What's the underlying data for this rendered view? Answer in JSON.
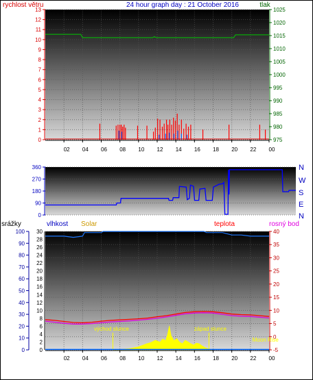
{
  "colors": {
    "wind": "#d80000",
    "gust": "#ff0000",
    "pressure": "#00c800",
    "direction": "#0000ff",
    "humidity": "#1e78ff",
    "temperature": "#ff0000",
    "dewpoint": "#e000e0",
    "solar": "#ffff00",
    "rain": "#0066ff",
    "title": "#0000c0",
    "axis_left_top": "#d80000",
    "axis_right_top": "#006400",
    "axis_right_bottom": "#c00000",
    "axis_left_bottom": "#0000a0"
  },
  "chart_data": [
    {
      "type": "line",
      "panel": "wind-pressure",
      "title": "24 hour graph day : 21 October 2016",
      "left_label": "rychlost větru",
      "right_label": "tlak",
      "x_ticks": [
        "02",
        "04",
        "06",
        "08",
        "10",
        "12",
        "14",
        "16",
        "18",
        "20",
        "22",
        "00"
      ],
      "x_range_hours": [
        0,
        24
      ],
      "left_ylim": [
        0,
        13
      ],
      "left_ticks": [
        0,
        1,
        2,
        3,
        4,
        5,
        6,
        7,
        8,
        9,
        10,
        11,
        12,
        13
      ],
      "right_ylim": [
        975,
        1025
      ],
      "right_ticks": [
        975,
        980,
        985,
        990,
        995,
        1000,
        1005,
        1010,
        1015,
        1020,
        1025
      ],
      "series": [
        {
          "axis": "right",
          "points": [
            [
              0,
              1015.5
            ],
            [
              3.8,
              1015.5
            ],
            [
              4.0,
              1014.2
            ],
            [
              11.5,
              1014.2
            ],
            [
              11.7,
              1014.6
            ],
            [
              11.9,
              1014.2
            ],
            [
              20.2,
              1014.2
            ],
            [
              20.4,
              1015.3
            ],
            [
              24,
              1015.3
            ]
          ]
        },
        {
          "axis": "left",
          "style": "spikes",
          "points": [
            [
              5.85,
              1.6
            ],
            [
              7.6,
              1.4
            ],
            [
              7.8,
              1.5
            ],
            [
              8.0,
              1.5
            ],
            [
              8.15,
              1.5
            ],
            [
              8.3,
              1.3
            ],
            [
              8.45,
              1.5
            ],
            [
              8.6,
              1.2
            ],
            [
              9.9,
              1.4
            ],
            [
              10.9,
              1.4
            ],
            [
              11.6,
              0.8
            ],
            [
              11.8,
              1.2
            ],
            [
              12.05,
              2.1
            ],
            [
              12.3,
              2.0
            ],
            [
              12.55,
              1.3
            ],
            [
              12.75,
              1.6
            ],
            [
              13.0,
              2.0
            ],
            [
              13.15,
              1.5
            ],
            [
              13.35,
              2.0
            ],
            [
              13.55,
              1.5
            ],
            [
              13.75,
              2.2
            ],
            [
              13.95,
              1.9
            ],
            [
              14.15,
              2.6
            ],
            [
              14.35,
              1.5
            ],
            [
              14.6,
              2.0
            ],
            [
              14.85,
              1.1
            ],
            [
              15.1,
              1.6
            ],
            [
              15.35,
              1.3
            ],
            [
              15.6,
              1.5
            ],
            [
              16.9,
              1.0
            ],
            [
              19.7,
              1.5
            ],
            [
              23.0,
              1.5
            ],
            [
              23.6,
              1.0
            ]
          ]
        },
        {
          "axis": "left",
          "style": "spikes",
          "points": [
            [
              7.9,
              0.9
            ],
            [
              8.2,
              0.8
            ],
            [
              12.2,
              0.5
            ],
            [
              12.9,
              0.6
            ],
            [
              13.3,
              0.7
            ],
            [
              13.8,
              0.6
            ],
            [
              14.2,
              0.9
            ],
            [
              14.6,
              0.6
            ],
            [
              15.2,
              0.5
            ]
          ]
        }
      ]
    },
    {
      "type": "line",
      "panel": "wind-direction",
      "y_ticks": [
        0,
        90,
        180,
        270,
        360
      ],
      "ylim": [
        0,
        360
      ],
      "right_labels": [
        "N",
        "W",
        "S",
        "E",
        "N"
      ],
      "series": [
        {
          "points": [
            [
              0,
              75
            ],
            [
              6.8,
              75
            ],
            [
              6.85,
              90
            ],
            [
              7.2,
              90
            ],
            [
              7.25,
              125
            ],
            [
              11.8,
              125
            ],
            [
              11.85,
              110
            ],
            [
              12.2,
              110
            ],
            [
              12.25,
              130
            ],
            [
              12.8,
              130
            ],
            [
              12.85,
              215
            ],
            [
              13.5,
              210
            ],
            [
              13.6,
              115
            ],
            [
              13.8,
              125
            ],
            [
              13.9,
              225
            ],
            [
              14.2,
              215
            ],
            [
              14.3,
              110
            ],
            [
              14.7,
              110
            ],
            [
              14.8,
              195
            ],
            [
              15.3,
              200
            ],
            [
              15.4,
              110
            ],
            [
              16.0,
              110
            ],
            [
              16.1,
              210
            ],
            [
              16.5,
              225
            ],
            [
              16.6,
              230
            ],
            [
              17.0,
              235
            ],
            [
              17.1,
              245
            ],
            [
              17.2,
              5
            ],
            [
              17.5,
              5
            ],
            [
              17.55,
              340
            ],
            [
              17.6,
              155
            ],
            [
              17.65,
              340
            ],
            [
              22.7,
              340
            ],
            [
              22.75,
              175
            ],
            [
              23.3,
              175
            ],
            [
              23.35,
              185
            ],
            [
              24,
              185
            ]
          ]
        }
      ]
    },
    {
      "type": "line",
      "panel": "rain-humidity-solar-temperature",
      "labels": {
        "rain": "srážky",
        "humidity": "vlhkost",
        "solar": "Solar",
        "temperature": "teplota",
        "dewpoint": "rosný bod",
        "sunrise": "východ slunce",
        "sunset": "západ slunce",
        "moonrise": "Moon Rise"
      },
      "x_ticks": [
        "02",
        "04",
        "06",
        "08",
        "10",
        "12",
        "14",
        "16",
        "18",
        "20",
        "22",
        "00"
      ],
      "left_ticks_outer": [
        0,
        10,
        20,
        30,
        40,
        50,
        60,
        70,
        80,
        90,
        100
      ],
      "left_ticks_inner": [
        0,
        2,
        4,
        6,
        8,
        10,
        12,
        14,
        16,
        18,
        20,
        22,
        24,
        26,
        28,
        30
      ],
      "left_inner_ylim": [
        0,
        30
      ],
      "right_ticks": [
        -5,
        0,
        5,
        10,
        15,
        20,
        25,
        30,
        35,
        40
      ],
      "right_ylim": [
        -5,
        40
      ],
      "event_hours": {
        "sunrise": 7.25,
        "sunset": 17.55,
        "moonrise": 23.1
      },
      "series": [
        {
          "name_ref": "humidity",
          "axis": "humidity",
          "points": [
            [
              0,
              96
            ],
            [
              2,
              96
            ],
            [
              3,
              95
            ],
            [
              4,
              96
            ],
            [
              4.2,
              99
            ],
            [
              6,
              99
            ],
            [
              6.2,
              100
            ],
            [
              17,
              100
            ],
            [
              17.3,
              99
            ],
            [
              19,
              99
            ],
            [
              20,
              97
            ],
            [
              21,
              97
            ],
            [
              22,
              96
            ],
            [
              24,
              96
            ]
          ]
        },
        {
          "name_ref": "temperature",
          "axis": "right",
          "points": [
            [
              0,
              6.5
            ],
            [
              1,
              6.2
            ],
            [
              2,
              5.8
            ],
            [
              3,
              5.4
            ],
            [
              4,
              5.3
            ],
            [
              5,
              5.5
            ],
            [
              6,
              5.9
            ],
            [
              7,
              6.2
            ],
            [
              8,
              6.4
            ],
            [
              9,
              6.6
            ],
            [
              10,
              6.8
            ],
            [
              11,
              7.1
            ],
            [
              12,
              7.6
            ],
            [
              13,
              8.0
            ],
            [
              14,
              8.6
            ],
            [
              15,
              9.2
            ],
            [
              16,
              9.5
            ],
            [
              17,
              9.6
            ],
            [
              18,
              9.5
            ],
            [
              19,
              9.1
            ],
            [
              20,
              8.6
            ],
            [
              21,
              8.4
            ],
            [
              22,
              8.3
            ],
            [
              23,
              8.0
            ],
            [
              24,
              7.7
            ]
          ]
        },
        {
          "name_ref": "dewpoint",
          "axis": "right",
          "points": [
            [
              0,
              5.9
            ],
            [
              1,
              5.5
            ],
            [
              2,
              5.1
            ],
            [
              3,
              4.8
            ],
            [
              4,
              4.8
            ],
            [
              5,
              5.0
            ],
            [
              6,
              5.3
            ],
            [
              7,
              5.6
            ],
            [
              8,
              5.8
            ],
            [
              9,
              6.0
            ],
            [
              10,
              6.3
            ],
            [
              11,
              6.6
            ],
            [
              12,
              7.0
            ],
            [
              13,
              7.5
            ],
            [
              14,
              8.1
            ],
            [
              15,
              8.7
            ],
            [
              16,
              9.0
            ],
            [
              17,
              9.1
            ],
            [
              18,
              9.0
            ],
            [
              19,
              8.5
            ],
            [
              20,
              8.0
            ],
            [
              21,
              7.8
            ],
            [
              22,
              7.7
            ],
            [
              23,
              7.4
            ],
            [
              24,
              7.1
            ]
          ]
        },
        {
          "name_ref": "solar",
          "axis": "right",
          "style": "area",
          "points": [
            [
              7.3,
              -5
            ],
            [
              8.0,
              -4.8
            ],
            [
              9.0,
              -4.5
            ],
            [
              10.0,
              -3.8
            ],
            [
              10.8,
              -2.7
            ],
            [
              11.3,
              -2.2
            ],
            [
              11.8,
              -1.3
            ],
            [
              12.3,
              -2.0
            ],
            [
              12.6,
              -0.8
            ],
            [
              12.9,
              -1.5
            ],
            [
              13.1,
              0.8
            ],
            [
              13.3,
              4.2
            ],
            [
              13.5,
              0.4
            ],
            [
              13.8,
              -1.5
            ],
            [
              14.1,
              -0.6
            ],
            [
              14.4,
              -2.0
            ],
            [
              14.7,
              -2.6
            ],
            [
              15.0,
              -1.3
            ],
            [
              15.3,
              -1.9
            ],
            [
              15.6,
              -2.6
            ],
            [
              15.9,
              -3.1
            ],
            [
              16.2,
              -2.4
            ],
            [
              16.5,
              -2.6
            ],
            [
              16.8,
              -3.4
            ],
            [
              17.1,
              -4.0
            ],
            [
              17.5,
              -4.6
            ],
            [
              17.9,
              -5
            ]
          ]
        },
        {
          "name_ref": "rain",
          "axis": "right",
          "points": [
            [
              0,
              -4.85
            ],
            [
              24,
              -4.85
            ]
          ]
        }
      ]
    }
  ]
}
